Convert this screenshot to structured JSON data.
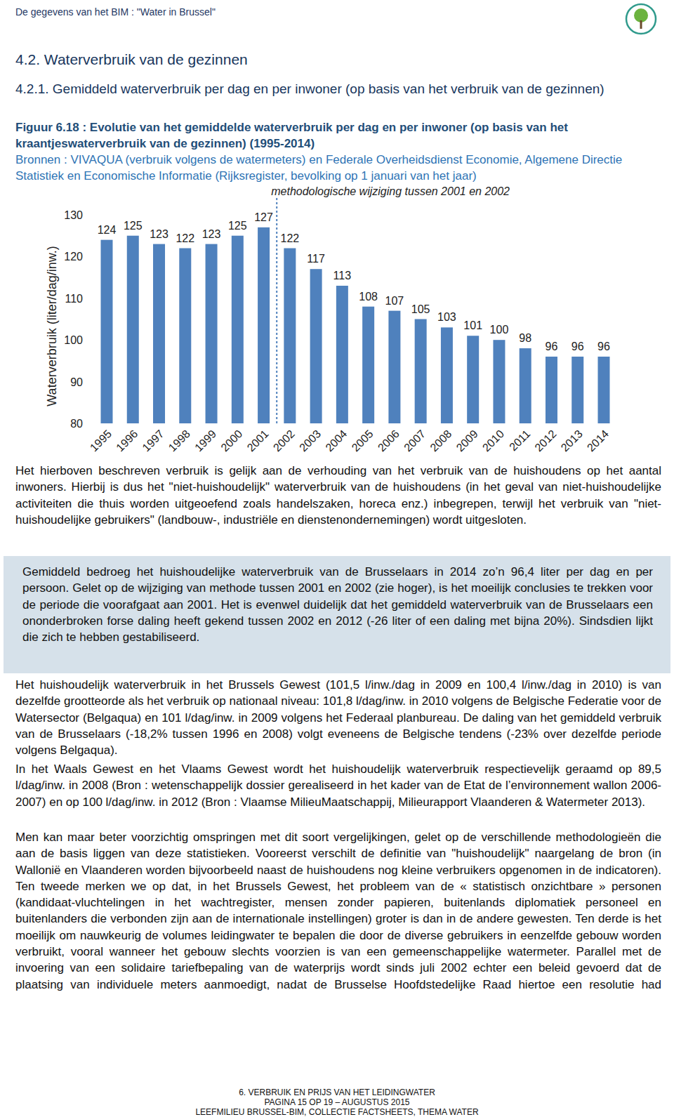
{
  "header": {
    "title": "De gegevens van het BIM : \"Water in Brussel\""
  },
  "headings": [
    "4.2.  Waterverbruik van de gezinnen",
    "4.2.1.  Gemiddeld waterverbruik per dag en per inwoner (op basis van het verbruik van de gezinnen)"
  ],
  "figure": {
    "caption": "Figuur 6.18 : Evolutie van het gemiddelde waterverbruik per dag en per inwoner (op basis van het kraantjeswaterverbruik van de gezinnen) (1995-2014)",
    "source": "Bronnen : VIVAQUA (verbruik volgens de watermeters) en Federale Overheidsdienst Economie, Algemene Directie Statistiek en Economische Informatie (Rijksregister, bevolking op 1 januari van het jaar)"
  },
  "chart_data": {
    "type": "bar",
    "y_label": "Waterverbruik (liter/dag/inw.)",
    "annotation": {
      "text": "methodologische wijziging tussen 2001 en 2002",
      "between": [
        "2001",
        "2002"
      ]
    },
    "categories": [
      "1995",
      "1996",
      "1997",
      "1998",
      "1999",
      "2000",
      "2001",
      "2002",
      "2003",
      "2004",
      "2005",
      "2006",
      "2007",
      "2008",
      "2009",
      "2010",
      "2011",
      "2012",
      "2013",
      "2014"
    ],
    "values": [
      124,
      125,
      123,
      122,
      123,
      125,
      127,
      122,
      117,
      113,
      108,
      107,
      105,
      103,
      101,
      100,
      98,
      96,
      96,
      96
    ],
    "color": "#4f81bd",
    "ylim": [
      80,
      130
    ],
    "yticks": [
      80,
      90,
      100,
      110,
      120,
      130
    ],
    "grid": false,
    "data_labels": true
  },
  "paragraphs": [
    "Het hierboven beschreven verbruik is gelijk aan de verhouding van het verbruik van de huishoudens op het aantal inwoners. Hierbij is dus het \"niet-huishoudelijk\" waterverbruik van de huishoudens (in het geval van niet-huishoudelijke activiteiten die thuis worden uitgeoefend zoals handelszaken, horeca enz.) inbegrepen, terwijl het verbruik van \"niet-huishoudelijke gebruikers\" (landbouw-, industriële en dienstenondernemingen) wordt uitgesloten.",
    "Het huishoudelijk waterverbruik in het Brussels Gewest (101,5 l/inw./dag in 2009 en 100,4 l/inw./dag in 2010) is van dezelfde grootteorde als het verbruik op nationaal niveau: 101,8 l/dag/inw. in 2010 volgens de Belgische Federatie voor de Watersector (Belgaqua) en 101 l/dag/inw. in 2009 volgens het Federaal planbureau.  De daling van het gemiddeld verbruik van de Brusselaars (-18,2% tussen 1996 en 2008) volgt eveneens de Belgische tendens (-23% over dezelfde periode volgens Belgaqua).",
    "In het Waals Gewest en het Vlaams Gewest wordt het huishoudelijk waterverbruik respectievelijk geraamd op 89,5 l/dag/inw. in 2008 (Bron : wetenschappelijk dossier gerealiseerd in het kader van de Etat de l’environnement wallon 2006-2007) en op 100 l/dag/inw. in 2012 (Bron : Vlaamse MilieuMaatschappij, Milieurapport Vlaanderen & Watermeter 2013).",
    "Men kan maar beter voorzichtig omspringen met dit soort vergelijkingen, gelet op de verschillende methodologieën die aan de basis liggen van deze statistieken.  Vooreerst verschilt de definitie van \"huishoudelijk\" naargelang de bron (in Wallonië en Vlaanderen worden bijvoorbeeld naast de huishoudens nog kleine verbruikers opgenomen in de indicatoren).  Ten tweede merken we op dat, in het Brussels Gewest, het probleem van de « statistisch onzichtbare » personen (kandidaat-vluchtelingen in het wachtregister, mensen zonder papieren, buitenlands diplomatiek personeel en buitenlanders die verbonden zijn aan de internationale instellingen) groter is dan in de andere gewesten.  Ten derde is het moeilijk om nauwkeurig de volumes leidingwater te bepalen die door de diverse gebruikers in eenzelfde gebouw worden verbruikt, vooral wanneer het gebouw slechts voorzien is van een gemeenschappelijke watermeter. Parallel met de invoering van een solidaire tariefbepaling van de waterprijs wordt sinds juli 2002 echter een beleid gevoerd dat de plaatsing van individuele meters aanmoedigt, nadat de Brusselse Hoofdstedelijke Raad hiertoe een resolutie had"
  ],
  "highlight": "Gemiddeld bedroeg het huishoudelijke waterverbruik van de Brusselaars in 2014 zo’n 96,4 liter per dag en per persoon. Gelet op de wijziging van methode tussen 2001 en 2002 (zie hoger), is het moeilijk conclusies te trekken voor de periode die voorafgaat aan 2001. Het is evenwel duidelijk dat het gemiddeld waterverbruik van de Brusselaars een ononderbroken forse daling heeft gekend tussen 2002 en 2012 (-26 liter of een daling met bijna 20%). Sindsdien lijkt die zich te hebben gestabiliseerd.",
  "footer": [
    "6. VERBRUIK EN PRIJS VAN HET LEIDINGWATER",
    "PAGINA 15 OP  19 – AUGUSTUS 2015",
    "LEEFMILIEU BRUSSEL-BIM, COLLECTIE FACTSHEETS, THEMA WATER"
  ]
}
